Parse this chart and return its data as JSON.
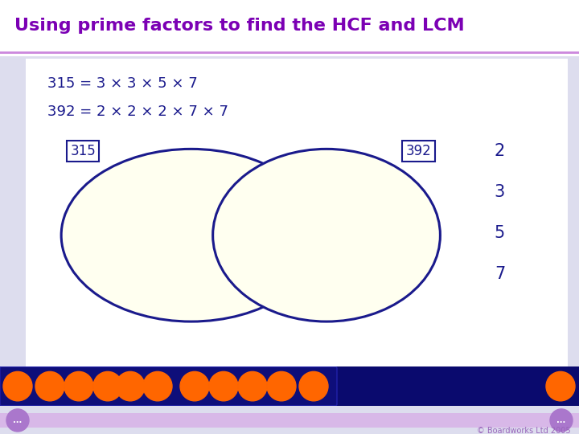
{
  "title": "Using prime factors to find the HCF and LCM",
  "title_color": "#7B00B4",
  "title_fontsize": 16,
  "bg_color": "#EEEEFF",
  "main_panel_bg": "#FFFFFF",
  "main_panel_border": "#1a1a8c",
  "formula1": "315 = 3 × 3 × 5 × 7",
  "formula2": "392 = 2 × 2 × 2 × 7 × 7",
  "formula_color": "#1a1a8c",
  "formula_fontsize": 13,
  "label_315": "315",
  "label_392": "392",
  "label_color": "#1a1a8c",
  "venn_fill": "#FFFFF0",
  "venn_edge": "#1a1a8c",
  "side_numbers": [
    "2",
    "3",
    "5",
    "7"
  ],
  "side_numbers_color": "#1a1a8c",
  "side_numbers_fontsize": 15,
  "toolbar_bg": "#0a0a6e",
  "toolbar_btn_color": "#FF6600",
  "footer_bg": "#E8D0F0",
  "footer_text": "© Boardworks Ltd 2005",
  "footer_text_color": "#9966BB",
  "title_bar_bg": "#FFFFFF",
  "separator_color": "#CC88DD",
  "nav_dot_color": "#AA77CC"
}
